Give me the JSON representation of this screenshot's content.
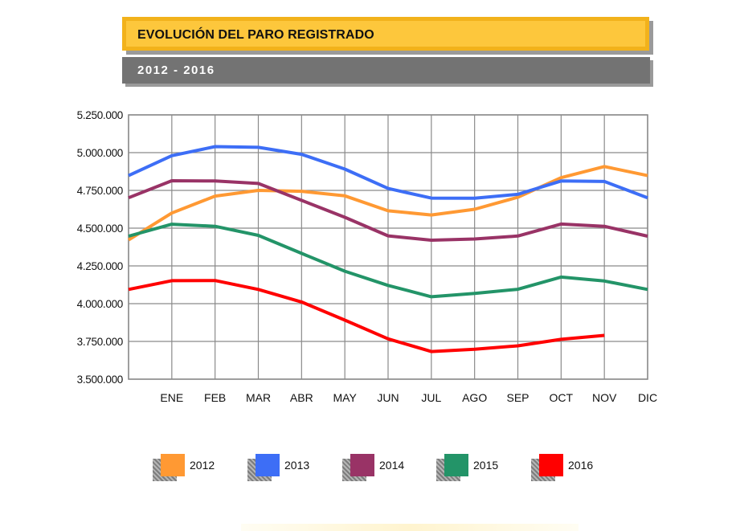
{
  "header": {
    "title": "EVOLUCIÓN DEL PARO REGISTRADO",
    "subtitle": "2012 - 2016"
  },
  "chart_data": {
    "type": "line",
    "categories": [
      "",
      "ENE",
      "FEB",
      "MAR",
      "ABR",
      "MAY",
      "JUN",
      "JUL",
      "AGO",
      "SEP",
      "OCT",
      "NOV",
      "DIC"
    ],
    "ylim": [
      3500000,
      5250000
    ],
    "yticks": [
      3500000,
      3750000,
      4000000,
      4250000,
      4500000,
      4750000,
      5000000,
      5250000
    ],
    "ytick_labels": [
      "3.500.000",
      "3.750.000",
      "4.000.000",
      "4.250.000",
      "4.500.000",
      "4.750.000",
      "5.000.000",
      "5.250.000"
    ],
    "grid": true,
    "legend_position": "bottom",
    "series": [
      {
        "name": "2012",
        "color": "#ff9933",
        "values": [
          4422000,
          4600000,
          4712000,
          4750000,
          4744000,
          4714000,
          4615000,
          4587000,
          4625000,
          4705000,
          4834000,
          4908000,
          4848000
        ]
      },
      {
        "name": "2013",
        "color": "#3d6ef6",
        "values": [
          4848000,
          4980000,
          5040000,
          5035000,
          4989000,
          4891000,
          4763000,
          4699000,
          4698000,
          4724000,
          4812000,
          4809000,
          4701000
        ]
      },
      {
        "name": "2014",
        "color": "#993366",
        "values": [
          4701000,
          4814000,
          4812000,
          4796000,
          4684000,
          4572000,
          4449000,
          4420000,
          4428000,
          4448000,
          4527000,
          4512000,
          4447000
        ]
      },
      {
        "name": "2015",
        "color": "#239468",
        "values": [
          4447000,
          4526000,
          4512000,
          4452000,
          4333000,
          4215000,
          4121000,
          4046000,
          4068000,
          4095000,
          4176000,
          4150000,
          4094000
        ]
      },
      {
        "name": "2016",
        "color": "#ff0000",
        "values": [
          4094000,
          4152000,
          4153000,
          4094000,
          4011000,
          3891000,
          3767000,
          3683000,
          3698000,
          3721000,
          3764000,
          3790000,
          null
        ]
      }
    ]
  }
}
